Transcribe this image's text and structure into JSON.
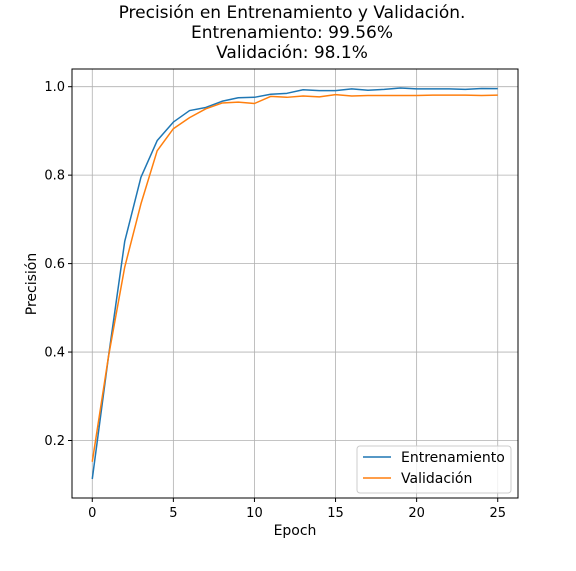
{
  "chart_data": {
    "type": "line",
    "title_lines": [
      "Precisión en Entrenamiento y Validación.",
      "Entrenamiento: 99.56%",
      "Validación: 98.1%"
    ],
    "xlabel": "Epoch",
    "ylabel": "Precisión",
    "xlim": [
      -1.25,
      26.25
    ],
    "ylim": [
      0.07,
      1.04
    ],
    "xticks": [
      0,
      5,
      10,
      15,
      20,
      25
    ],
    "yticks": [
      0.2,
      0.4,
      0.6,
      0.8,
      1.0
    ],
    "grid": true,
    "legend_position": "lower-right",
    "x": [
      0,
      1,
      2,
      3,
      4,
      5,
      6,
      7,
      8,
      9,
      10,
      11,
      12,
      13,
      14,
      15,
      16,
      17,
      18,
      19,
      20,
      21,
      22,
      23,
      24,
      25
    ],
    "series": [
      {
        "name": "Entrenamiento",
        "color": "#1f77b4",
        "values": [
          0.113,
          0.39,
          0.65,
          0.795,
          0.878,
          0.92,
          0.946,
          0.953,
          0.967,
          0.975,
          0.976,
          0.983,
          0.985,
          0.993,
          0.991,
          0.991,
          0.995,
          0.992,
          0.994,
          0.997,
          0.995,
          0.995,
          0.995,
          0.994,
          0.996,
          0.9956
        ]
      },
      {
        "name": "Validación",
        "color": "#ff7f0e",
        "values": [
          0.152,
          0.39,
          0.592,
          0.735,
          0.855,
          0.905,
          0.93,
          0.95,
          0.963,
          0.965,
          0.962,
          0.978,
          0.976,
          0.979,
          0.977,
          0.982,
          0.979,
          0.98,
          0.98,
          0.98,
          0.98,
          0.981,
          0.981,
          0.981,
          0.98,
          0.981
        ]
      }
    ]
  }
}
